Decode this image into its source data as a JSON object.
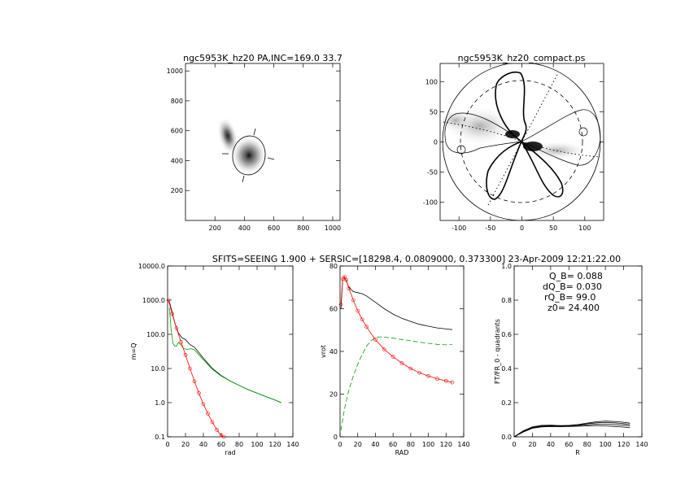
{
  "figure": {
    "panel1_title": "ngc5953K_hz20 PA,INC=169.0 33.7",
    "panel2_title": "ngc5953K_hz20_compact.ps",
    "header": "SFITS=SEEING 1.900 + SERSIC=[18298.4, 0.0809000, 0.373300]  23-Apr-2009 12:21:22.00"
  },
  "chart_data": [
    {
      "type": "image",
      "title": "ngc5953K_hz20 PA,INC=169.0 33.7",
      "xlim": [
        0,
        1050
      ],
      "ylim": [
        0,
        1050
      ],
      "xticks": [
        "200",
        "400",
        "600",
        "800",
        "1000"
      ],
      "yticks": [
        "200",
        "400",
        "600",
        "800",
        "1000"
      ],
      "galaxy_center": [
        450,
        430
      ],
      "companion_center": [
        290,
        545
      ],
      "ellipse": {
        "center": [
          450,
          430
        ],
        "pa_deg": 169.0,
        "inc_deg": 33.7
      }
    },
    {
      "type": "polar-map",
      "title": "ngc5953K_hz20_compact.ps",
      "xlim": [
        -130,
        130
      ],
      "ylim": [
        -130,
        130
      ],
      "xticks": [
        "-100",
        "-50",
        "0",
        "50",
        "100"
      ],
      "yticks": [
        "-100",
        "-50",
        "0",
        "50",
        "100"
      ],
      "outer_radius": 130,
      "dashed_radius": 100
    },
    {
      "type": "line",
      "xlabel": "rad",
      "ylabel": "m=Q",
      "yscale": "log",
      "xlim": [
        0,
        140
      ],
      "ylim": [
        0.1,
        10000
      ],
      "xticks": [
        "0",
        "20",
        "40",
        "60",
        "80",
        "100",
        "120",
        "140"
      ],
      "yticks": [
        "0.1",
        "1.0",
        "10.0",
        "100.0",
        "1000.0",
        "10000.0"
      ],
      "series": [
        {
          "color": "#000000",
          "x": [
            2,
            5,
            8,
            12,
            16,
            20,
            25,
            30,
            40,
            50,
            60,
            70,
            80,
            90,
            100,
            110,
            120,
            127
          ],
          "y": [
            900,
            450,
            220,
            110,
            80,
            70,
            50,
            42,
            20,
            10,
            6.2,
            4.3,
            3.2,
            2.4,
            1.9,
            1.5,
            1.2,
            1.0
          ]
        },
        {
          "color": "#00a000",
          "x": [
            2,
            4,
            6,
            8,
            10,
            12,
            15,
            18,
            22,
            26,
            30,
            40,
            50,
            60,
            70,
            80,
            90,
            100,
            110,
            120,
            127
          ],
          "y": [
            600,
            130,
            55,
            45,
            45,
            58,
            48,
            38,
            36,
            38,
            35,
            18,
            9.5,
            6,
            4.3,
            3.2,
            2.4,
            1.9,
            1.5,
            1.2,
            1.0
          ]
        },
        {
          "color": "#ff0000",
          "x": [
            1,
            5,
            10,
            15,
            20,
            25,
            30,
            35,
            40,
            45,
            50,
            55,
            60,
            63
          ],
          "y": [
            1000,
            400,
            150,
            60,
            25,
            10,
            4.2,
            1.9,
            0.9,
            0.48,
            0.27,
            0.16,
            0.11,
            0.1
          ]
        }
      ]
    },
    {
      "type": "line",
      "xlabel": "RAD",
      "ylabel": "vrot",
      "xlim": [
        0,
        140
      ],
      "ylim": [
        0,
        80
      ],
      "xticks": [
        "0",
        "20",
        "40",
        "60",
        "80",
        "100",
        "120",
        "140"
      ],
      "yticks": [
        "0",
        "20",
        "40",
        "60",
        "80"
      ],
      "series": [
        {
          "color": "#000000",
          "x": [
            1,
            3,
            5,
            7,
            10,
            15,
            20,
            25,
            30,
            40,
            50,
            60,
            70,
            80,
            90,
            100,
            110,
            120,
            127
          ],
          "y": [
            60,
            74,
            75,
            73,
            70,
            68,
            67.5,
            67,
            66,
            63,
            60,
            57.5,
            55.5,
            54,
            52.7,
            51.8,
            51,
            50.5,
            50.2
          ]
        },
        {
          "color": "#00a000",
          "x": [
            1,
            5,
            10,
            15,
            20,
            25,
            30,
            35,
            40,
            45,
            50,
            60,
            70,
            80,
            90,
            100,
            110,
            120,
            127
          ],
          "y": [
            3,
            13,
            22,
            28.5,
            34,
            38.5,
            42.5,
            45,
            46.5,
            46.8,
            46.7,
            46.2,
            45.6,
            45,
            44.3,
            43.8,
            43.3,
            43.1,
            43.2
          ]
        },
        {
          "color": "#ff0000",
          "x": [
            1,
            3,
            5,
            7,
            10,
            15,
            20,
            25,
            30,
            40,
            50,
            60,
            70,
            80,
            90,
            100,
            110,
            120,
            127
          ],
          "y": [
            62,
            74,
            75,
            73.5,
            69.5,
            64,
            59,
            55,
            51.5,
            45.5,
            41,
            37.5,
            34.5,
            32,
            30,
            28.5,
            27.2,
            26.2,
            25.5
          ]
        }
      ]
    },
    {
      "type": "line",
      "xlabel": "R",
      "ylabel": "FT/FR_0 - quadrants",
      "xlim": [
        0,
        140
      ],
      "ylim": [
        0,
        1.0
      ],
      "xticks": [
        "0",
        "20",
        "40",
        "60",
        "80",
        "100",
        "120",
        "140"
      ],
      "yticks": [
        "0.0",
        "0.2",
        "0.4",
        "0.6",
        "0.8",
        "1.0"
      ],
      "annotations": [
        "Q_B=  0.088",
        "dQ_B=  0.030",
        "rQ_B=   99.0",
        "z0= 24.400"
      ],
      "series": [
        {
          "color": "#000000",
          "x": [
            0,
            10,
            20,
            30,
            40,
            50,
            60,
            70,
            80,
            90,
            100,
            110,
            120,
            127
          ],
          "y": [
            0,
            0.035,
            0.058,
            0.067,
            0.068,
            0.066,
            0.067,
            0.072,
            0.08,
            0.088,
            0.092,
            0.09,
            0.085,
            0.08
          ]
        },
        {
          "color": "#000000",
          "x": [
            0,
            10,
            20,
            30,
            40,
            50,
            60,
            70,
            80,
            90,
            100,
            110,
            120,
            127
          ],
          "y": [
            0,
            0.032,
            0.055,
            0.064,
            0.066,
            0.064,
            0.066,
            0.07,
            0.076,
            0.082,
            0.084,
            0.082,
            0.077,
            0.072
          ]
        },
        {
          "color": "#000000",
          "x": [
            0,
            10,
            20,
            30,
            40,
            50,
            60,
            70,
            80,
            90,
            100,
            110,
            120,
            127
          ],
          "y": [
            0,
            0.03,
            0.052,
            0.061,
            0.063,
            0.062,
            0.063,
            0.066,
            0.07,
            0.074,
            0.074,
            0.072,
            0.068,
            0.064
          ]
        },
        {
          "color": "#000000",
          "x": [
            0,
            10,
            20,
            30,
            40,
            50,
            60,
            70,
            80,
            90,
            100,
            110,
            120,
            127
          ],
          "y": [
            0,
            0.028,
            0.05,
            0.058,
            0.06,
            0.059,
            0.06,
            0.062,
            0.064,
            0.066,
            0.064,
            0.061,
            0.057,
            0.053
          ]
        }
      ]
    }
  ]
}
